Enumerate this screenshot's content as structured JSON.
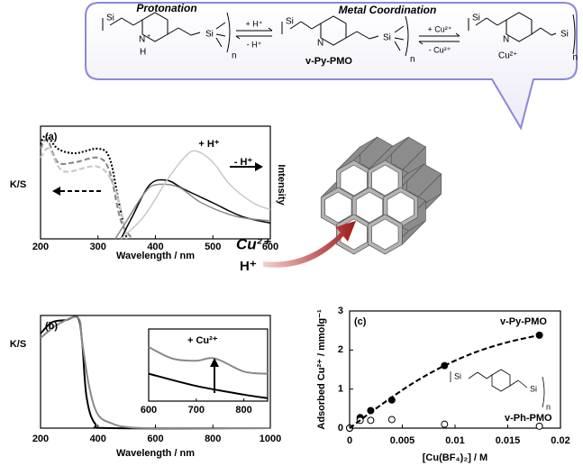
{
  "scheme": {
    "protonation": "Protonation",
    "metal_coordination": "Metal Coordination",
    "plus_h": "+ H⁺",
    "minus_h": "- H⁺",
    "plus_cu": "+ Cu²⁺",
    "minus_cu": "- Cu²⁺",
    "compound": "v-Py-PMO",
    "si": "Si",
    "n_atom": "N",
    "n_charged": "N",
    "h": "H",
    "plus": "+",
    "repeat": "n",
    "cu": "Cu²⁺"
  },
  "pore": {
    "cu": "Cu²⁺",
    "h": "H⁺"
  },
  "chart_data": [
    {
      "type": "line",
      "label": "(a)",
      "x_label": "Wavelength / nm",
      "y_label": "K/S",
      "y2_label": "Intensity",
      "xlim": [
        200,
        600
      ],
      "xticks": [
        200,
        300,
        400,
        500,
        600
      ],
      "ylim": [
        0,
        1
      ],
      "annotations": [
        "+ H⁺",
        "- H⁺"
      ],
      "series": [
        {
          "color": "#000000",
          "dash": "dotted",
          "x": [
            200,
            210,
            230,
            260,
            300,
            320,
            335,
            350
          ],
          "values": [
            0.84,
            0.92,
            0.8,
            0.76,
            0.8,
            0.72,
            0.36,
            0
          ]
        },
        {
          "color": "#888888",
          "dash": "dashed",
          "x": [
            200,
            212,
            230,
            260,
            300,
            320,
            340,
            360
          ],
          "values": [
            0.8,
            0.88,
            0.68,
            0.68,
            0.72,
            0.6,
            0.16,
            0
          ]
        },
        {
          "color": "#c8c8c8",
          "dash": "dashed",
          "x": [
            200,
            215,
            240,
            300,
            330,
            350
          ],
          "values": [
            0.72,
            0.8,
            0.6,
            0.64,
            0.44,
            0
          ]
        },
        {
          "color": "#000000",
          "dash": "solid",
          "x": [
            340,
            360,
            390,
            420,
            450,
            500,
            550,
            600
          ],
          "values": [
            0,
            0.2,
            0.48,
            0.52,
            0.44,
            0.32,
            0.2,
            0.14
          ]
        },
        {
          "color": "#888888",
          "dash": "solid",
          "x": [
            330,
            350,
            380,
            400,
            440,
            480,
            540,
            600
          ],
          "values": [
            0,
            0.16,
            0.4,
            0.48,
            0.46,
            0.32,
            0.2,
            0.16
          ]
        },
        {
          "color": "#c8c8c8",
          "dash": "solid",
          "x": [
            340,
            380,
            420,
            450,
            470,
            500,
            530,
            570,
            600
          ],
          "values": [
            0,
            0.2,
            0.52,
            0.72,
            0.78,
            0.68,
            0.48,
            0.32,
            0.26
          ]
        }
      ]
    },
    {
      "type": "line",
      "label": "(b)",
      "x_label": "Wavelength / nm",
      "y_label": "K/S",
      "xlim": [
        200,
        1000
      ],
      "xticks": [
        200,
        400,
        600,
        800,
        1000
      ],
      "ylim": [
        0,
        1
      ],
      "series": [
        {
          "color": "#000000",
          "dash": "solid",
          "x": [
            200,
            240,
            290,
            330,
            345,
            360,
            390,
            450,
            1000
          ],
          "values": [
            0.84,
            0.94,
            0.96,
            0.98,
            0.76,
            0.28,
            0.04,
            0,
            0
          ]
        },
        {
          "color": "#888888",
          "dash": "solid",
          "x": [
            200,
            260,
            330,
            345,
            370,
            400,
            450,
            500,
            600,
            1000
          ],
          "values": [
            0.8,
            0.92,
            0.98,
            0.76,
            0.36,
            0.12,
            0.04,
            0.01,
            0,
            0
          ]
        }
      ],
      "inset": {
        "xlim": [
          600,
          850
        ],
        "xticks": [
          600,
          700,
          800
        ],
        "ylim": [
          0,
          1
        ],
        "annotations": [
          "+ Cu²⁺"
        ],
        "series": [
          {
            "color": "#888888",
            "dash": "solid",
            "x": [
              600,
              650,
              700,
              740,
              800,
              850
            ],
            "values": [
              0.75,
              0.59,
              0.56,
              0.59,
              0.41,
              0.38
            ]
          },
          {
            "color": "#000000",
            "dash": "solid",
            "x": [
              600,
              700,
              800,
              850
            ],
            "values": [
              0.38,
              0.21,
              0.09,
              0.04
            ]
          }
        ]
      }
    },
    {
      "type": "scatter",
      "label": "(c)",
      "x_label": "[Cu(BF₄)₂] / M",
      "y_label": "Adsorbed Cu²⁺ / mmolg⁻¹",
      "xlim": [
        0,
        0.02
      ],
      "xticks": [
        0,
        0.005,
        0.01,
        0.015,
        0.02
      ],
      "ylim": [
        0,
        3
      ],
      "yticks": [
        0,
        1,
        2,
        3
      ],
      "series": [
        {
          "name": "v-Py-PMO",
          "color": "#000000",
          "marker": "filled",
          "x": [
            0,
            0.001,
            0.002,
            0.004,
            0.009,
            0.018
          ],
          "values": [
            0,
            0.27,
            0.45,
            0.72,
            1.6,
            2.38
          ]
        },
        {
          "name": "v-Ph-PMO",
          "color": "#000000",
          "marker": "open",
          "x": [
            0,
            0.001,
            0.002,
            0.004,
            0.009,
            0.018
          ],
          "values": [
            0,
            0.2,
            0.2,
            0.22,
            0.1,
            0.05
          ]
        },
        {
          "color": "#000000",
          "dash": "dashed",
          "x": [
            0,
            0.003,
            0.006,
            0.009,
            0.012,
            0.015,
            0.018
          ],
          "values": [
            0,
            0.6,
            1.15,
            1.6,
            1.95,
            2.2,
            2.38
          ]
        }
      ],
      "structure": {
        "si": "Si",
        "repeat": "n"
      }
    }
  ]
}
